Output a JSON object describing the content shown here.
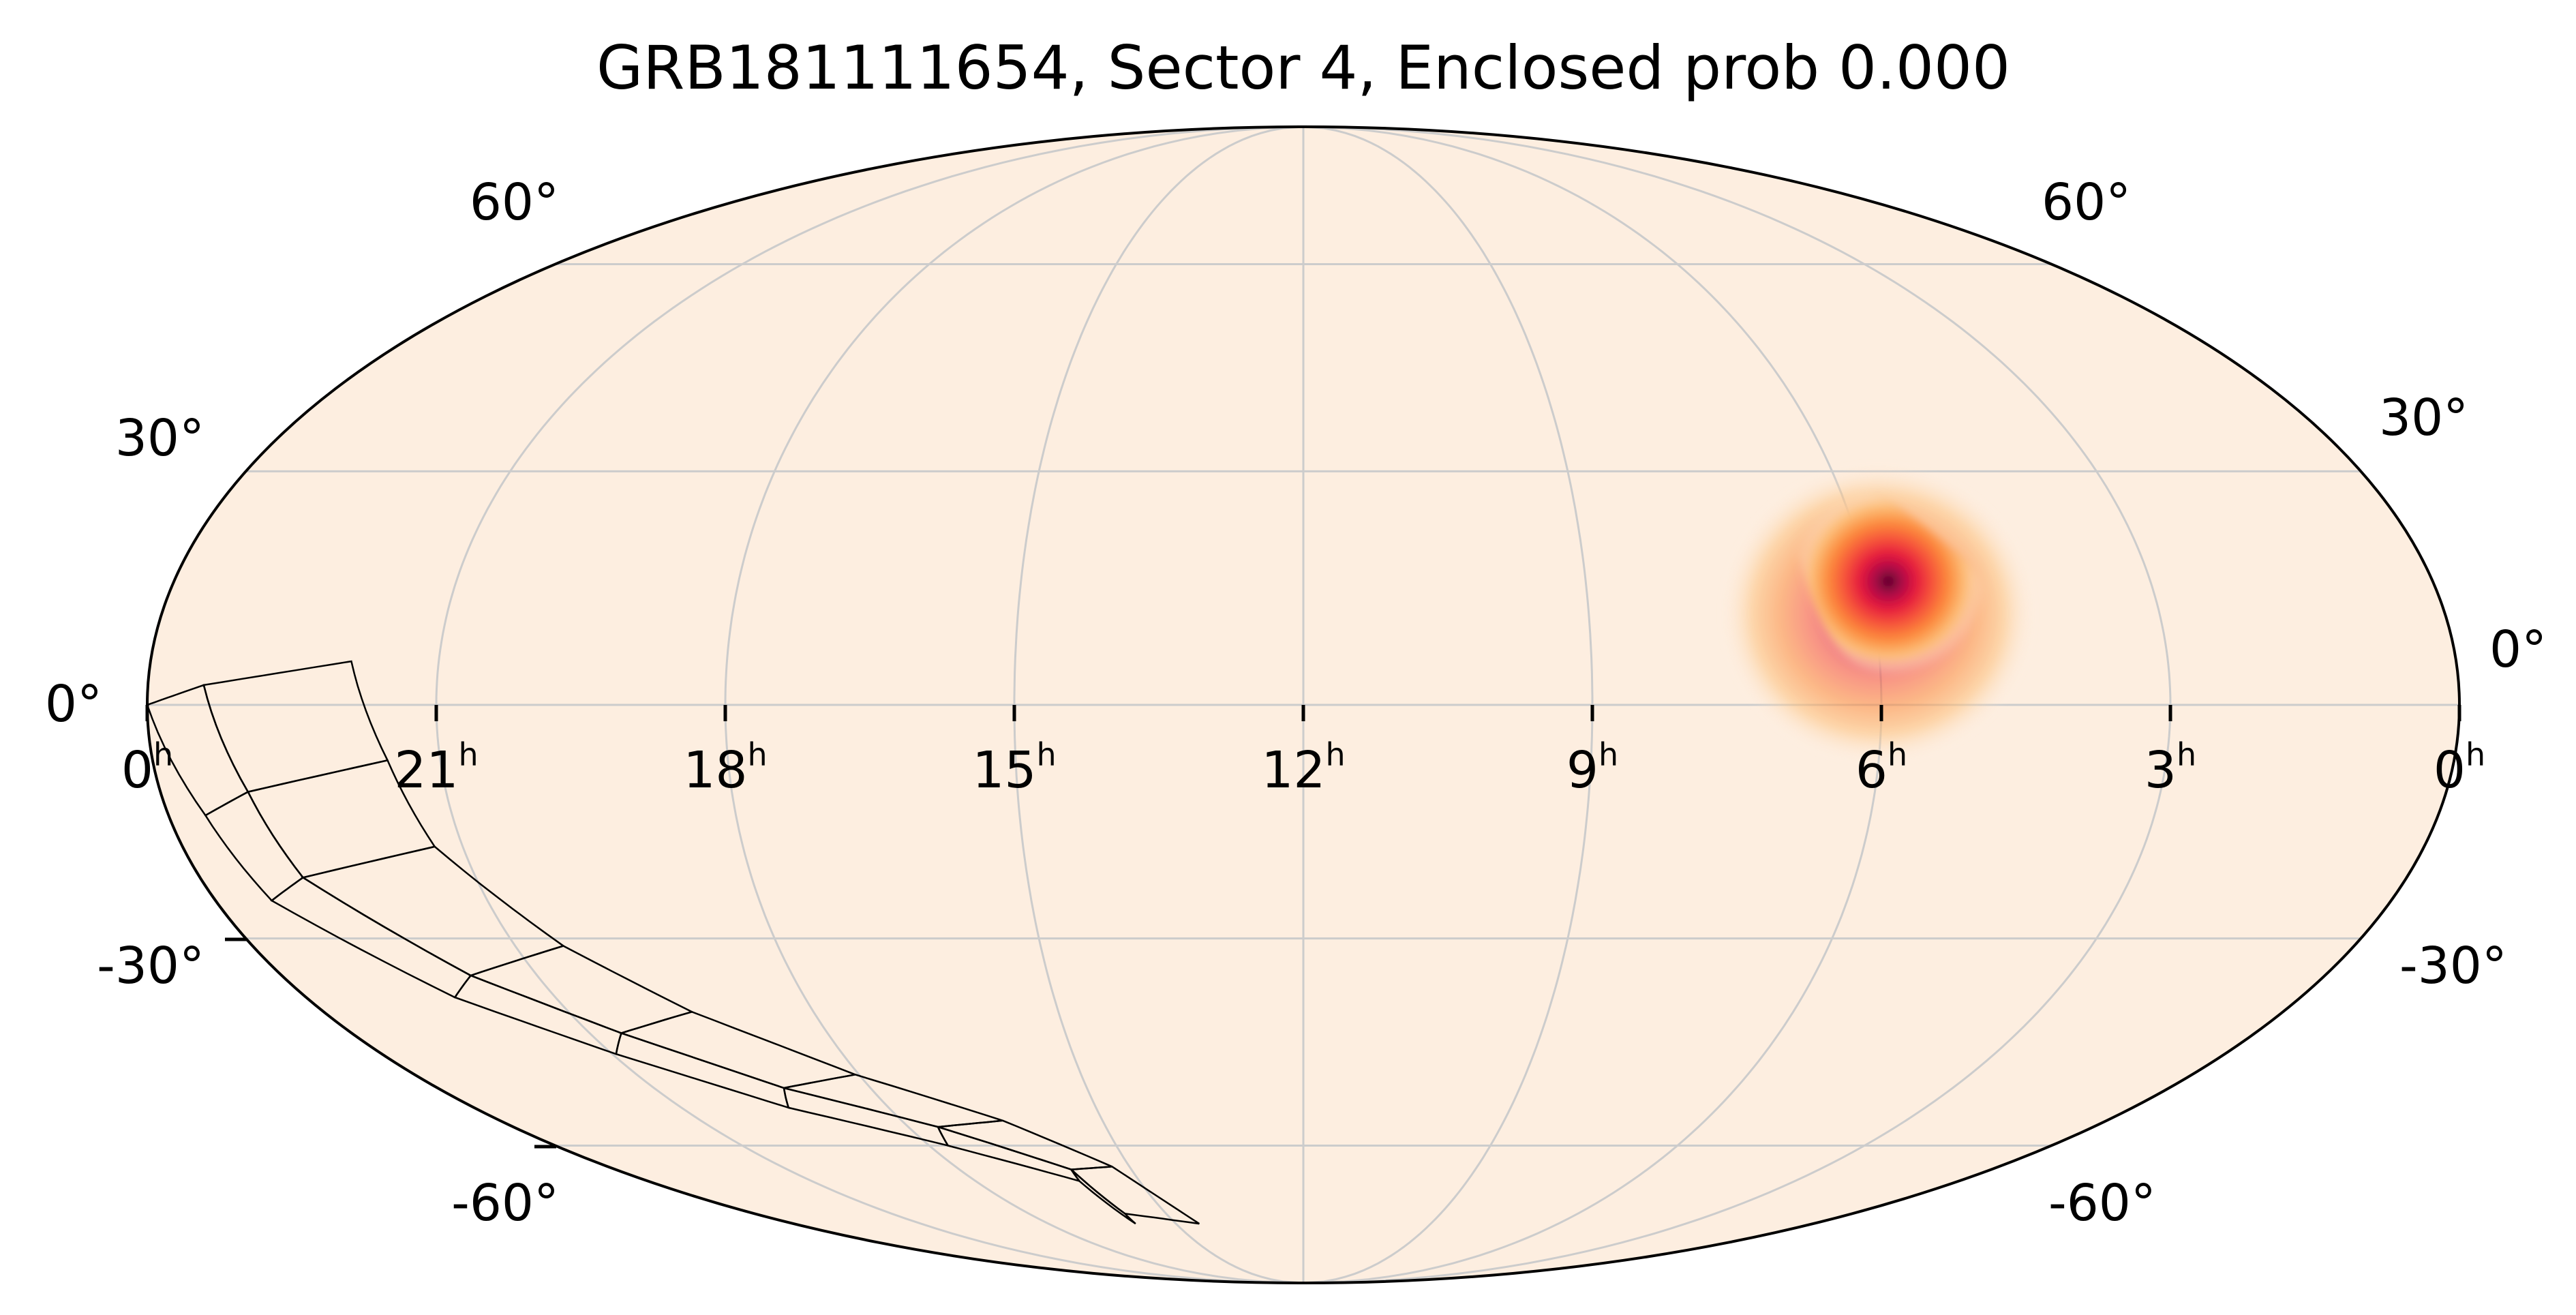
{
  "title": "GRB181111654, Sector 4, Enclosed prob 0.000",
  "projection": "mollweide",
  "colors": {
    "background": "#fdeee0",
    "grid": "#cccccc",
    "outline": "#000000",
    "colormap": [
      "#fdeee0",
      "#fdc07a",
      "#fc8a3c",
      "#f6523a",
      "#e3163f",
      "#a20a48",
      "#4a0320"
    ]
  },
  "lon_ticks": [
    {
      "label": "0",
      "unit": "h"
    },
    {
      "label": "21",
      "unit": "h"
    },
    {
      "label": "18",
      "unit": "h"
    },
    {
      "label": "15",
      "unit": "h"
    },
    {
      "label": "12",
      "unit": "h"
    },
    {
      "label": "9",
      "unit": "h"
    },
    {
      "label": "6",
      "unit": "h"
    },
    {
      "label": "3",
      "unit": "h"
    },
    {
      "label": "0",
      "unit": "h"
    }
  ],
  "lat_ticks_left": [
    "60°",
    "30°",
    "0°",
    "-30°",
    "-60°"
  ],
  "lat_ticks_right": [
    "60°",
    "30°",
    "0°",
    "-30°",
    "-60°"
  ],
  "localization": {
    "ra_hours": 6.0,
    "dec_deg": 10,
    "peak": "dark"
  },
  "tess_sector": {
    "ccd_panels": [
      [
        [
          2.09,
          5.5
        ],
        [
          0.58,
          2.5
        ],
        [
          0.92,
          -11.0
        ],
        [
          2.45,
          -7.0
        ]
      ],
      [
        [
          0.58,
          2.5
        ],
        [
          0.0,
          0.0
        ],
        [
          0.39,
          -14.0
        ],
        [
          0.92,
          -11.0
        ]
      ],
      [
        [
          2.45,
          -7.0
        ],
        [
          0.92,
          -11.0
        ],
        [
          1.12,
          -22.0
        ],
        [
          2.7,
          -18.0
        ]
      ],
      [
        [
          0.92,
          -11.0
        ],
        [
          0.39,
          -14.0
        ],
        [
          0.62,
          -25.0
        ],
        [
          1.12,
          -22.0
        ]
      ],
      [
        [
          2.7,
          -18.0
        ],
        [
          1.12,
          -22.0
        ],
        [
          2.22,
          -35.0
        ],
        [
          3.55,
          -31.0
        ]
      ],
      [
        [
          1.12,
          -22.0
        ],
        [
          0.62,
          -25.0
        ],
        [
          1.79,
          -38.0
        ],
        [
          2.22,
          -35.0
        ]
      ],
      [
        [
          3.55,
          -31.0
        ],
        [
          2.22,
          -35.0
        ],
        [
          3.4,
          -43.0
        ],
        [
          4.51,
          -40.0
        ]
      ],
      [
        [
          2.22,
          -35.0
        ],
        [
          1.79,
          -38.0
        ],
        [
          3.05,
          -46.0
        ],
        [
          3.4,
          -43.0
        ]
      ],
      [
        [
          4.51,
          -40.0
        ],
        [
          3.4,
          -43.0
        ],
        [
          4.8,
          -51.0
        ],
        [
          5.95,
          -49.0
        ]
      ],
      [
        [
          3.4,
          -43.0
        ],
        [
          3.05,
          -46.0
        ],
        [
          4.55,
          -54.0
        ],
        [
          4.8,
          -51.0
        ]
      ],
      [
        [
          5.95,
          -49.0
        ],
        [
          4.8,
          -51.0
        ],
        [
          6.45,
          -57.0
        ],
        [
          7.51,
          -56.0
        ]
      ],
      [
        [
          4.8,
          -51.0
        ],
        [
          4.55,
          -54.0
        ],
        [
          6.3,
          -60.0
        ],
        [
          6.45,
          -57.0
        ]
      ],
      [
        [
          7.51,
          -56.0
        ],
        [
          6.45,
          -57.0
        ],
        [
          7.95,
          -64.0
        ],
        [
          8.7,
          -63.5
        ]
      ],
      [
        [
          6.45,
          -57.0
        ],
        [
          6.3,
          -60.0
        ],
        [
          7.9,
          -66.0
        ],
        [
          7.95,
          -64.0
        ]
      ],
      [
        [
          8.7,
          -63.5
        ],
        [
          7.95,
          -64.0
        ],
        [
          8.1,
          -72.0
        ],
        [
          9.55,
          -74.0
        ]
      ],
      [
        [
          7.95,
          -64.0
        ],
        [
          7.9,
          -66.0
        ],
        [
          8.05,
          -74.0
        ],
        [
          8.1,
          -72.0
        ]
      ]
    ]
  }
}
